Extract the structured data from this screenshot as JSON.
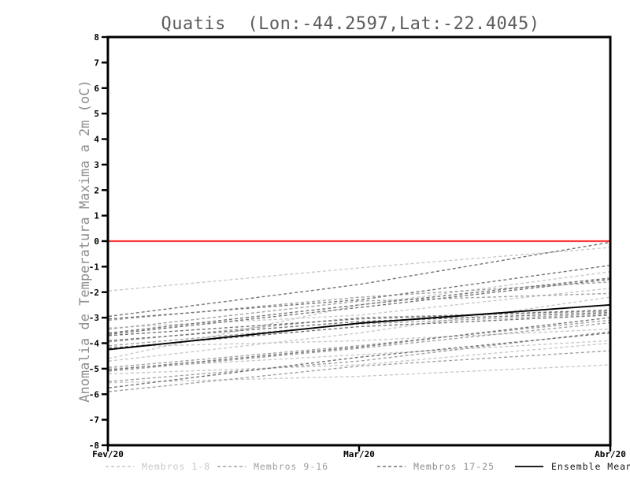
{
  "title": "Quatis  (Lon:-44.2597,Lat:-22.4045)",
  "chart_data": {
    "type": "line",
    "x_labels": [
      "Fev/20",
      "Mar/20",
      "Abr/20"
    ],
    "xlabel": "",
    "ylabel": "Anomalia de Temperatura Maxima a 2m (oC)",
    "ylim": [
      -8,
      8
    ],
    "ytick_step": 1,
    "grid": false,
    "legend_position": "bottom",
    "zero_line": {
      "value": 0,
      "color": "#fa3c3c"
    },
    "groups": [
      {
        "name": "Membros 1-8",
        "color": "#c9c9c9",
        "style": "dashed"
      },
      {
        "name": "Membros 9-16",
        "color": "#a2a2a2",
        "style": "dashed"
      },
      {
        "name": "Membros 17-25",
        "color": "#747474",
        "style": "dashed"
      }
    ],
    "series": [
      {
        "group": 0,
        "values": [
          -1.95,
          -1.05,
          -0.25
        ]
      },
      {
        "group": 0,
        "values": [
          -4.6,
          -2.5,
          -1.2
        ]
      },
      {
        "group": 0,
        "values": [
          -3.4,
          -2.9,
          -1.85
        ]
      },
      {
        "group": 0,
        "values": [
          -4.15,
          -3.9,
          -3.45
        ]
      },
      {
        "group": 0,
        "values": [
          -4.7,
          -3.6,
          -2.2
        ]
      },
      {
        "group": 0,
        "values": [
          -5.0,
          -4.45,
          -3.9
        ]
      },
      {
        "group": 0,
        "values": [
          -5.2,
          -4.85,
          -4.0
        ]
      },
      {
        "group": 0,
        "values": [
          -5.55,
          -5.3,
          -4.85
        ]
      },
      {
        "group": 1,
        "values": [
          -3.1,
          -2.2,
          -1.6
        ]
      },
      {
        "group": 1,
        "values": [
          -3.45,
          -2.35,
          -2.05
        ]
      },
      {
        "group": 1,
        "values": [
          -3.95,
          -3.0,
          -2.75
        ]
      },
      {
        "group": 1,
        "values": [
          -4.1,
          -3.25,
          -2.85
        ]
      },
      {
        "group": 1,
        "values": [
          -4.95,
          -4.1,
          -3.1
        ]
      },
      {
        "group": 1,
        "values": [
          -5.1,
          -4.2,
          -3.2
        ]
      },
      {
        "group": 1,
        "values": [
          -5.5,
          -4.7,
          -3.55
        ]
      },
      {
        "group": 1,
        "values": [
          -5.9,
          -4.9,
          -4.3
        ]
      },
      {
        "group": 2,
        "values": [
          -2.95,
          -1.7,
          -0.05
        ]
      },
      {
        "group": 2,
        "values": [
          -3.05,
          -2.3,
          -0.95
        ]
      },
      {
        "group": 2,
        "values": [
          -3.6,
          -2.5,
          -1.45
        ]
      },
      {
        "group": 2,
        "values": [
          -3.65,
          -2.6,
          -1.5
        ]
      },
      {
        "group": 2,
        "values": [
          -3.7,
          -3.05,
          -2.7
        ]
      },
      {
        "group": 2,
        "values": [
          -3.9,
          -3.15,
          -2.8
        ]
      },
      {
        "group": 2,
        "values": [
          -4.2,
          -3.35,
          -2.9
        ]
      },
      {
        "group": 2,
        "values": [
          -5.05,
          -4.15,
          -3.0
        ]
      },
      {
        "group": 2,
        "values": [
          -5.75,
          -4.55,
          -3.6
        ]
      }
    ],
    "mean": {
      "name": "Ensemble Mean",
      "color": "#000000",
      "values": [
        -4.25,
        -3.22,
        -2.5
      ]
    }
  },
  "legend": {
    "items": [
      {
        "label": "Membros 1-8",
        "style": "dashed",
        "color": "#c7c7c7"
      },
      {
        "label": "Membros 9-16",
        "style": "dashed",
        "color": "#9e9e9e"
      },
      {
        "label": "Membros 17-25",
        "style": "dashed",
        "color": "#8e8e8e"
      },
      {
        "label": "Ensemble Mean",
        "style": "solid",
        "color": "#161616"
      }
    ]
  }
}
